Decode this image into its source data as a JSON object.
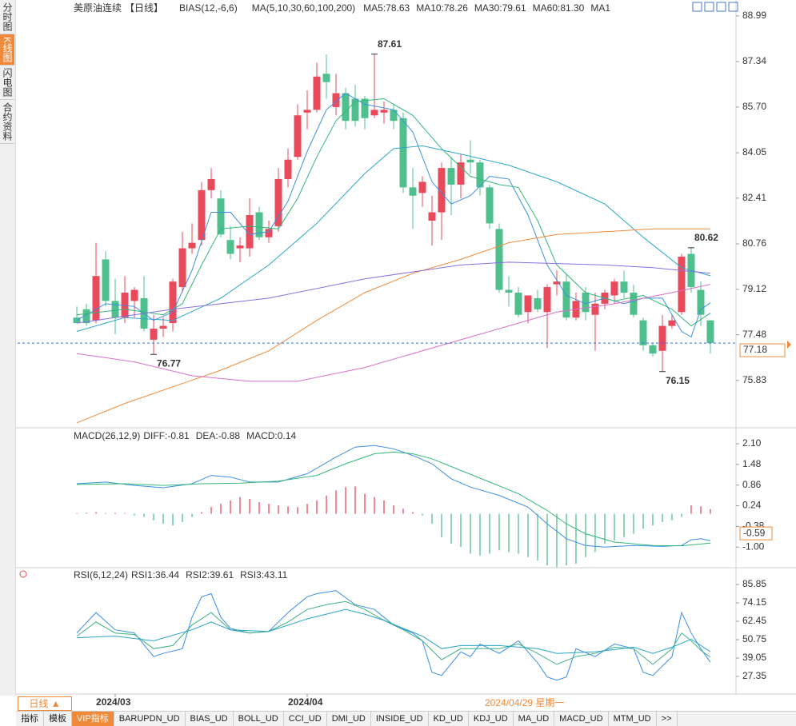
{
  "sidebar": {
    "tabs": [
      "分时图",
      "K线图",
      "闪电图",
      "合约资料"
    ]
  },
  "timeline": {
    "period_button": "日线",
    "cursor_date": "2024/04/29 星期一"
  },
  "toolbar": [
    "指标",
    "模板",
    "VIP指标",
    "BARUPDN_UD",
    "BIAS_UD",
    "BOLL_UD",
    "CCI_UD",
    "DMI_UD",
    "INSIDE_UD",
    "KD_UD",
    "KDJ_UD",
    "MA_UD",
    "MACD_UD",
    "MTM_UD",
    ">>"
  ],
  "chart_data": [
    {
      "type": "candlestick",
      "title": "美原油连续",
      "period": "【日线】",
      "indicators": [
        "BIAS(12,-6,6)",
        "MA(5,10,30,60,100,200)"
      ],
      "up_color": "#e8495b",
      "down_color": "#4fc08d",
      "xlim": [
        -6.17,
        68.67
      ],
      "xticks": [
        {
          "value": 4,
          "label": "2024/03"
        },
        {
          "value": 24,
          "label": "2024/04"
        }
      ],
      "ylim": [
        74.18,
        89.42
      ],
      "yticks": [
        88.99,
        87.34,
        {
          "value": 85.7,
          "label": "85.70"
        },
        84.05,
        82.41,
        80.76,
        79.12,
        77.48,
        75.83
      ],
      "open": [
        78.1,
        78.4,
        78.0,
        80.2,
        78.7,
        78.1,
        78.7,
        78.8,
        77.3,
        77.7,
        77.9,
        79.2,
        80.6,
        80.9,
        82.7,
        82.4,
        80.9,
        80.6,
        80.6,
        81.9,
        81.0,
        81.4,
        83.1,
        83.9,
        85.5,
        85.6,
        86.9,
        85.7,
        86.2,
        86.0,
        86.0,
        85.4,
        85.5,
        85.6,
        85.3,
        82.8,
        82.6,
        81.6,
        81.9,
        83.5,
        82.9,
        83.8,
        83.7,
        82.8,
        81.3,
        79.1,
        79.0,
        78.3,
        78.8,
        78.3,
        79.3,
        79.4,
        78.1,
        79.0,
        78.2,
        78.6,
        78.9,
        79.4,
        79.0,
        78.0,
        77.1,
        76.9,
        77.8,
        78.3,
        80.4,
        79.1,
        78.0
      ],
      "high": [
        78.5,
        78.6,
        80.8,
        80.5,
        79.5,
        79.6,
        79.2,
        79.6,
        78.2,
        78.1,
        79.5,
        81.2,
        81.5,
        83.0,
        83.5,
        82.7,
        81.4,
        81.0,
        82.4,
        82.1,
        81.6,
        83.5,
        84.2,
        85.8,
        86.3,
        87.3,
        87.6,
        86.9,
        86.4,
        86.5,
        86.1,
        87.61,
        85.9,
        85.8,
        85.5,
        83.5,
        83.2,
        82.5,
        83.7,
        83.9,
        84.0,
        84.5,
        83.8,
        82.9,
        81.5,
        79.6,
        79.2,
        78.9,
        79.1,
        79.3,
        79.8,
        79.7,
        79.0,
        79.2,
        79.0,
        79.1,
        79.5,
        79.8,
        79.3,
        78.1,
        77.2,
        78.2,
        78.2,
        80.4,
        80.62,
        79.4,
        78.0
      ],
      "low": [
        77.9,
        77.8,
        77.9,
        78.5,
        77.5,
        77.9,
        78.1,
        77.6,
        76.77,
        77.4,
        77.6,
        79.0,
        80.4,
        80.7,
        82.4,
        81.0,
        80.2,
        80.1,
        80.3,
        80.9,
        80.8,
        81.2,
        82.8,
        83.8,
        84.9,
        85.5,
        86.0,
        85.4,
        84.9,
        85.0,
        84.9,
        85.3,
        85.1,
        84.9,
        82.6,
        81.3,
        82.1,
        80.7,
        80.9,
        81.8,
        82.4,
        83.3,
        82.5,
        81.3,
        79.0,
        78.5,
        78.1,
        77.9,
        78.3,
        77.0,
        78.9,
        78.0,
        78.0,
        78.0,
        76.9,
        78.4,
        78.6,
        78.8,
        78.1,
        76.9,
        76.7,
        76.15,
        77.7,
        78.2,
        79.0,
        77.8,
        76.8
      ],
      "close": [
        77.9,
        77.9,
        79.6,
        78.7,
        78.1,
        79.0,
        79.1,
        77.7,
        77.7,
        77.8,
        79.4,
        80.6,
        80.8,
        82.7,
        83.1,
        81.1,
        80.4,
        80.7,
        81.8,
        81.0,
        81.3,
        83.1,
        83.8,
        85.4,
        85.6,
        86.8,
        86.6,
        86.2,
        85.2,
        85.2,
        85.3,
        85.6,
        85.6,
        85.2,
        82.8,
        82.5,
        83.0,
        81.9,
        83.5,
        82.9,
        83.7,
        83.7,
        82.8,
        81.5,
        79.1,
        79.0,
        78.2,
        78.9,
        78.4,
        79.2,
        79.4,
        78.1,
        78.7,
        78.3,
        78.6,
        79.0,
        79.4,
        79.0,
        78.2,
        77.1,
        76.8,
        77.8,
        78.0,
        80.3,
        79.2,
        78.2,
        77.18
      ],
      "series": [
        {
          "name": "MA5:78.63",
          "color": "#3d8fe0",
          "x": [
            0,
            3,
            6,
            8,
            10,
            12,
            14,
            16,
            18,
            20,
            22,
            24,
            26,
            28,
            30,
            33,
            35,
            37,
            39,
            41,
            43,
            45,
            47,
            49,
            51,
            53,
            55,
            57,
            59,
            61,
            63,
            64,
            65,
            66
          ],
          "values": [
            78.0,
            78.6,
            78.5,
            78.0,
            78.3,
            79.8,
            81.9,
            81.9,
            81.1,
            81.2,
            82.3,
            84.1,
            85.6,
            86.2,
            85.8,
            85.6,
            84.8,
            83.0,
            82.2,
            82.5,
            83.2,
            83.1,
            81.8,
            80.0,
            78.9,
            78.6,
            78.8,
            78.6,
            78.8,
            78.8,
            77.6,
            77.4,
            78.4,
            78.63
          ]
        },
        {
          "name": "MA10:78.26",
          "color": "#34b77a",
          "x": [
            0,
            5,
            9,
            11,
            13,
            15,
            18,
            21,
            23,
            25,
            27,
            29,
            32,
            35,
            38,
            41,
            44,
            46,
            48,
            50,
            53,
            56,
            59,
            62,
            64,
            66
          ],
          "values": [
            78.2,
            78.4,
            78.2,
            78.6,
            80.0,
            81.3,
            81.4,
            81.3,
            82.4,
            83.9,
            85.2,
            85.9,
            86.0,
            85.4,
            84.2,
            83.2,
            82.9,
            82.8,
            81.6,
            80.0,
            79.0,
            78.7,
            78.9,
            78.4,
            77.8,
            78.26
          ]
        },
        {
          "name": "MA30:79.61",
          "color": "#2fa6c9",
          "x": [
            0,
            5,
            10,
            15,
            20,
            25,
            30,
            33,
            36,
            40,
            45,
            50,
            55,
            59,
            63,
            66
          ],
          "values": [
            77.6,
            78.1,
            78.0,
            78.8,
            80.0,
            81.5,
            83.3,
            84.2,
            84.3,
            84.0,
            83.6,
            83.0,
            82.2,
            81.0,
            79.9,
            79.61
          ]
        },
        {
          "name": "MA60:81.30",
          "color": "#f08a3a",
          "x": [
            0,
            5,
            10,
            15,
            20,
            25,
            30,
            35,
            40,
            45,
            50,
            55,
            60,
            64,
            66
          ],
          "values": [
            74.3,
            75.0,
            75.6,
            76.2,
            76.9,
            78.0,
            79.0,
            79.7,
            80.2,
            80.8,
            81.1,
            81.2,
            81.3,
            81.3,
            81.3
          ]
        },
        {
          "name": "MA1",
          "color": "#8a6fe0",
          "x": [
            0,
            10,
            20,
            30,
            40,
            45,
            55,
            60,
            66
          ],
          "values": [
            77.9,
            78.4,
            78.8,
            79.5,
            80.0,
            80.1,
            80.0,
            79.9,
            79.7
          ]
        },
        {
          "color": "#d870c8",
          "x": [
            0,
            6,
            12,
            18,
            23,
            30,
            40,
            45,
            50,
            56,
            62,
            66
          ],
          "values": [
            76.8,
            76.5,
            76.0,
            75.8,
            75.8,
            76.3,
            77.3,
            77.8,
            78.3,
            78.6,
            79.0,
            79.3
          ]
        }
      ]
    },
    {
      "type": "macd",
      "title": "MACD(26,12,9)",
      "xlim": [
        -6.17,
        68.67
      ],
      "ylim": [
        -1.57,
        2.46
      ],
      "yticks": [
        {
          "value": 2.1,
          "label": "2.10"
        },
        1.48,
        0.86,
        0.24,
        -0.38,
        {
          "value": -1,
          "label": "-1.00"
        }
      ],
      "marker_value": -0.59,
      "histogram": {
        "name": "MACD:0.14",
        "color": "#3d8fe0",
        "up_color": "#e8495b",
        "down_color": "#4fc08d",
        "values": [
          0.02,
          0.03,
          0.05,
          0.02,
          0.03,
          0.02,
          -0.05,
          -0.1,
          -0.2,
          -0.3,
          -0.35,
          -0.25,
          -0.1,
          0.05,
          0.2,
          0.3,
          0.4,
          0.5,
          0.45,
          0.35,
          0.3,
          0.25,
          0.22,
          0.2,
          0.3,
          0.4,
          0.55,
          0.7,
          0.8,
          0.82,
          0.6,
          0.5,
          0.4,
          0.25,
          0.15,
          0.05,
          -0.05,
          -0.3,
          -0.7,
          -0.9,
          -1.0,
          -1.2,
          -1.25,
          -1.2,
          -1.1,
          -1.15,
          -1.2,
          -1.3,
          -1.4,
          -1.55,
          -1.6,
          -1.55,
          -1.5,
          -1.3,
          -1.15,
          -0.9,
          -0.8,
          -0.7,
          -0.6,
          -0.45,
          -0.35,
          -0.25,
          -0.2,
          -0.1,
          0.25,
          0.22,
          0.14
        ]
      },
      "series": [
        {
          "name": "DIFF:-0.81",
          "color": "#3d8fe0",
          "x": [
            0,
            3,
            6,
            9,
            12,
            14,
            16,
            18,
            21,
            24,
            27,
            29,
            31,
            33,
            35,
            37,
            39,
            41,
            44,
            47,
            49,
            51,
            53,
            55,
            58,
            61,
            63,
            64,
            65,
            66
          ],
          "values": [
            0.9,
            0.95,
            0.85,
            0.78,
            0.9,
            1.15,
            1.1,
            0.95,
            0.95,
            1.2,
            1.7,
            2.0,
            2.05,
            1.95,
            1.75,
            1.5,
            1.05,
            0.8,
            0.55,
            0.2,
            -0.3,
            -0.75,
            -0.95,
            -1.0,
            -0.95,
            -0.98,
            -0.95,
            -0.78,
            -0.75,
            -0.81
          ]
        },
        {
          "name": "DEA:-0.88",
          "color": "#34b77a",
          "x": [
            0,
            5,
            9,
            13,
            17,
            21,
            25,
            28,
            31,
            33,
            35,
            37,
            40,
            43,
            46,
            49,
            51,
            53,
            56,
            60,
            63,
            66
          ],
          "values": [
            0.88,
            0.9,
            0.85,
            0.9,
            0.92,
            0.98,
            1.15,
            1.5,
            1.8,
            1.85,
            1.8,
            1.65,
            1.3,
            0.95,
            0.6,
            0.1,
            -0.3,
            -0.6,
            -0.85,
            -0.95,
            -0.96,
            -0.88
          ]
        }
      ]
    },
    {
      "type": "line",
      "title": "RSI(6,12,24)",
      "xlim": [
        -6.17,
        68.67
      ],
      "ylim": [
        17.2,
        94.5
      ],
      "yticks": [
        85.85,
        74.15,
        62.45,
        50.75,
        39.05,
        27.35
      ],
      "series": [
        {
          "name": "RSI1:36.44",
          "color": "#3a8ee6",
          "x": [
            0,
            2,
            4,
            6,
            8,
            9,
            11,
            12,
            13,
            14,
            15,
            16,
            18,
            20,
            22,
            24,
            25,
            27,
            29,
            31,
            33,
            35,
            36,
            37,
            38,
            40,
            41,
            42,
            44,
            46,
            48,
            49,
            50,
            51,
            52,
            54,
            56,
            58,
            59,
            60,
            62,
            63,
            64,
            65,
            66
          ],
          "values": [
            55,
            68,
            57,
            55,
            40,
            42,
            45,
            65,
            78,
            80,
            65,
            58,
            55,
            56,
            68,
            78,
            80,
            82,
            73,
            70,
            60,
            55,
            50,
            30,
            28,
            43,
            40,
            48,
            42,
            50,
            36,
            27,
            25,
            27,
            45,
            40,
            48,
            45,
            30,
            28,
            40,
            68,
            55,
            45,
            36.44
          ]
        },
        {
          "name": "RSI2:39.61",
          "color": "#3fb27f",
          "x": [
            0,
            2,
            4,
            6,
            8,
            10,
            12,
            14,
            16,
            18,
            20,
            22,
            24,
            26,
            28,
            30,
            32,
            34,
            36,
            38,
            40,
            42,
            44,
            46,
            48,
            50,
            52,
            54,
            56,
            58,
            60,
            62,
            63,
            64,
            65,
            66
          ],
          "values": [
            53,
            62,
            55,
            54,
            45,
            47,
            60,
            68,
            57,
            55,
            56,
            62,
            70,
            73,
            75,
            70,
            63,
            57,
            50,
            38,
            45,
            45,
            45,
            48,
            42,
            35,
            40,
            42,
            46,
            45,
            35,
            45,
            55,
            50,
            44,
            39.61
          ]
        },
        {
          "name": "RSI3:43.11",
          "color": "#2ba3c7",
          "x": [
            0,
            4,
            8,
            12,
            14,
            16,
            20,
            24,
            26,
            28,
            30,
            32,
            34,
            36,
            38,
            40,
            44,
            48,
            50,
            54,
            58,
            60,
            62,
            64,
            66
          ],
          "values": [
            52,
            53,
            50,
            57,
            62,
            57,
            56,
            64,
            67,
            70,
            67,
            63,
            58,
            53,
            45,
            47,
            47,
            45,
            42,
            43,
            46,
            42,
            46,
            51,
            43.11
          ]
        }
      ]
    }
  ]
}
